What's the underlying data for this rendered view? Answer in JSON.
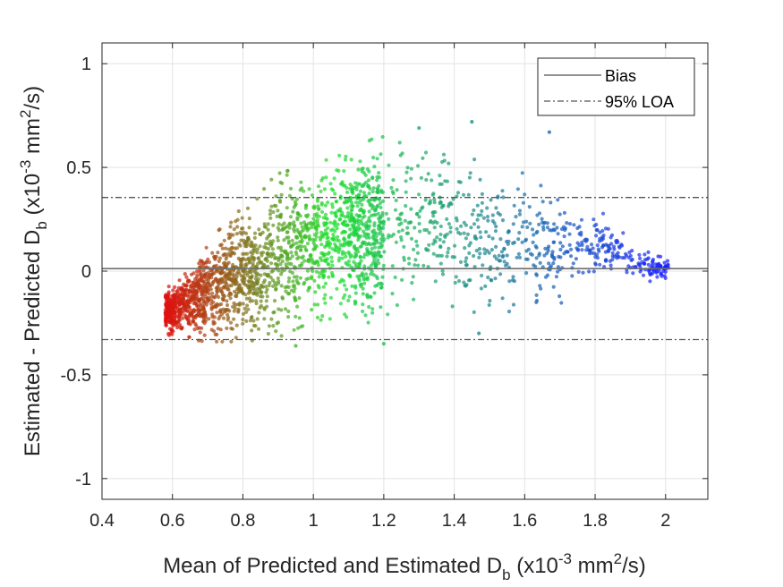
{
  "chart_data": {
    "type": "scatter",
    "title": "",
    "xlabel": {
      "prefix": "Mean of Predicted and Estimated D",
      "sub": "b",
      "unit_pre": " (x10",
      "exp": "-3",
      "unit_mid": " mm",
      "exp2": "2",
      "unit_post": "/s)"
    },
    "ylabel": {
      "prefix": "Estimated - Predicted D",
      "sub": "b",
      "unit_pre": " (x10",
      "exp": "-3",
      "unit_mid": " mm",
      "exp2": "2",
      "unit_post": "/s)"
    },
    "xlim": [
      0.4,
      2.12
    ],
    "ylim": [
      -1.1,
      1.1
    ],
    "xticks": [
      0.4,
      0.6,
      0.8,
      1,
      1.2,
      1.4,
      1.6,
      1.8,
      2
    ],
    "xtick_labels": [
      "0.4",
      "0.6",
      "0.8",
      "1",
      "1.2",
      "1.4",
      "1.6",
      "1.8",
      "2"
    ],
    "yticks": [
      -1,
      -0.5,
      0,
      0.5,
      1
    ],
    "ytick_labels": [
      "-1",
      "-0.5",
      "0",
      "0.5",
      "1"
    ],
    "grid": true,
    "legend_position": "top-right",
    "reference_lines": [
      {
        "name": "Bias",
        "y": 0.012,
        "style": "solid",
        "color": "#6e6e6e"
      },
      {
        "name": "95% LOA",
        "y": 0.355,
        "style": "dashdot",
        "color": "#555555"
      },
      {
        "name": "95% LOA",
        "y": -0.33,
        "style": "dashdot",
        "color": "#555555"
      }
    ],
    "legend": [
      {
        "label": "Bias",
        "style": "solid"
      },
      {
        "label": "95% LOA",
        "style": "dashdot"
      }
    ],
    "point_color_gradient": [
      "#e01010",
      "#20e030",
      "#1a20ff"
    ],
    "point_cloud_envelope": [
      {
        "x": 0.6,
        "lo": -0.3,
        "hi": -0.08
      },
      {
        "x": 0.7,
        "lo": -0.32,
        "hi": 0.12
      },
      {
        "x": 0.8,
        "lo": -0.32,
        "hi": 0.3
      },
      {
        "x": 0.9,
        "lo": -0.3,
        "hi": 0.45
      },
      {
        "x": 1.0,
        "lo": -0.22,
        "hi": 0.5
      },
      {
        "x": 1.1,
        "lo": -0.2,
        "hi": 0.55
      },
      {
        "x": 1.2,
        "lo": -0.25,
        "hi": 0.65
      },
      {
        "x": 1.3,
        "lo": -0.15,
        "hi": 0.6
      },
      {
        "x": 1.4,
        "lo": -0.15,
        "hi": 0.55
      },
      {
        "x": 1.5,
        "lo": -0.2,
        "hi": 0.5
      },
      {
        "x": 1.6,
        "lo": -0.2,
        "hi": 0.45
      },
      {
        "x": 1.7,
        "lo": -0.15,
        "hi": 0.4
      },
      {
        "x": 1.8,
        "lo": -0.05,
        "hi": 0.3
      },
      {
        "x": 1.9,
        "lo": -0.03,
        "hi": 0.15
      },
      {
        "x": 2.0,
        "lo": -0.05,
        "hi": 0.05
      }
    ],
    "highlighted_points": [
      {
        "x": 1.3,
        "y": 0.69
      },
      {
        "x": 1.45,
        "y": 0.72
      },
      {
        "x": 1.67,
        "y": 0.67
      },
      {
        "x": 1.2,
        "y": -0.35
      },
      {
        "x": 1.47,
        "y": -0.3
      },
      {
        "x": 0.95,
        "y": -0.36
      }
    ]
  }
}
